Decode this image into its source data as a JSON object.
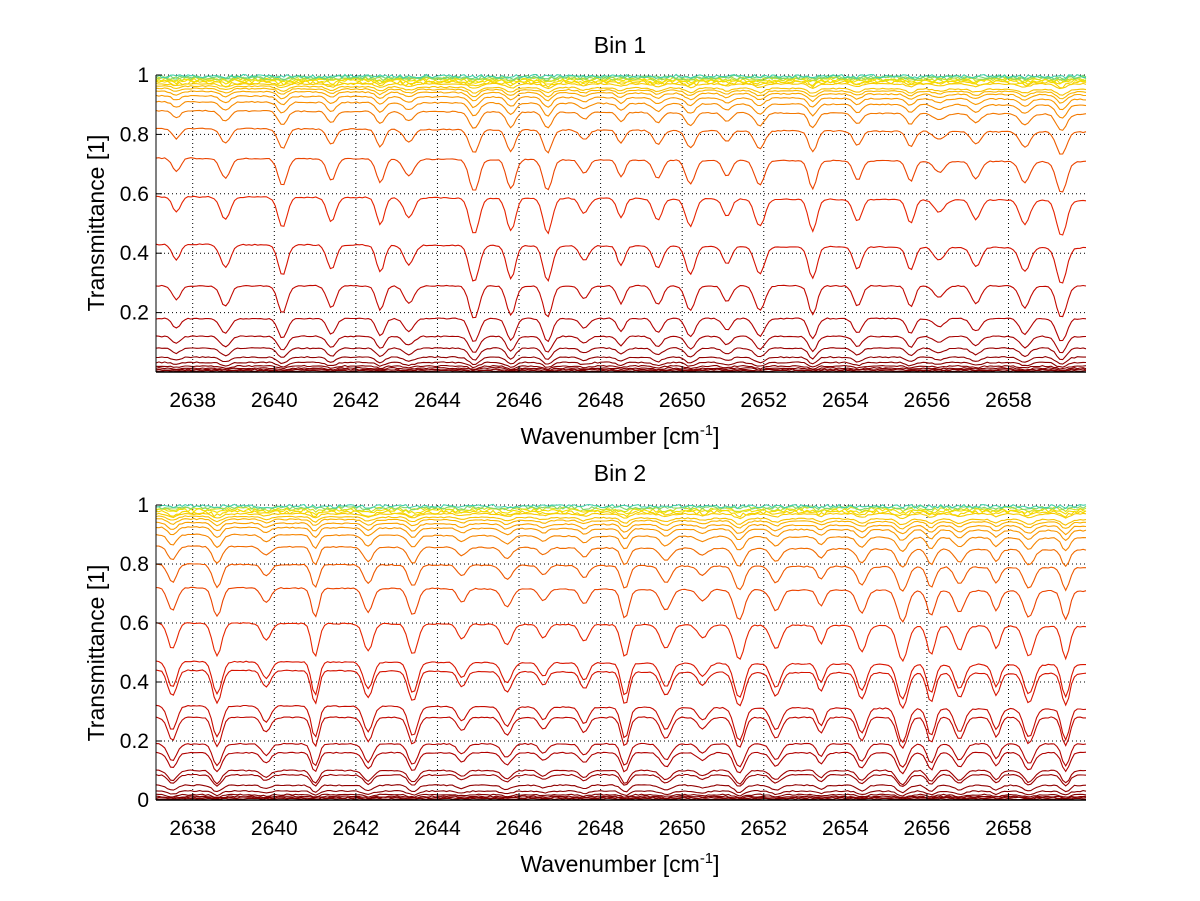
{
  "figure": {
    "background": "#ffffff",
    "grid_color": "#000000",
    "axis_color": "#000000"
  },
  "chart_data": [
    {
      "type": "line",
      "title": "Bin 1",
      "xlabel": "Wavenumber [cm",
      "xlabel_superscript": "-1",
      "xlabel_suffix": "]",
      "ylabel": "Transmittance [1]",
      "xlim": [
        2637.1,
        2659.9
      ],
      "ylim": [
        0,
        1
      ],
      "xticks": [
        2638,
        2640,
        2642,
        2644,
        2646,
        2648,
        2650,
        2652,
        2654,
        2656,
        2658
      ],
      "yticks": [
        0.2,
        0.4,
        0.6,
        0.8,
        1
      ],
      "ytick_labels": [
        "0.2",
        "0.4",
        "0.6",
        "0.8",
        "1"
      ],
      "grid": true,
      "line_count_approx": 50,
      "series_levels": [
        0.004,
        0.008,
        0.013,
        0.02,
        0.032,
        0.05,
        0.08,
        0.12,
        0.18,
        0.29,
        0.43,
        0.59,
        0.72,
        0.82,
        0.88,
        0.91,
        0.93,
        0.945,
        0.955,
        0.963,
        0.97,
        0.975,
        0.98,
        0.984,
        0.987,
        0.99,
        0.993,
        0.996
      ],
      "absorption_lines_cm1": [
        2637.6,
        2638.8,
        2640.2,
        2641.4,
        2642.6,
        2643.3,
        2644.9,
        2645.8,
        2646.7,
        2647.6,
        2648.5,
        2649.4,
        2650.2,
        2651.1,
        2651.9,
        2653.2,
        2654.3,
        2655.6,
        2656.3,
        2657.2,
        2658.4,
        2659.3
      ],
      "colormap": "dark-red → red → orange → yellow → cyan at 1"
    },
    {
      "type": "line",
      "title": "Bin 2",
      "xlabel": "Wavenumber [cm",
      "xlabel_superscript": "-1",
      "xlabel_suffix": "]",
      "ylabel": "Transmittance [1]",
      "xlim": [
        2637.1,
        2659.9
      ],
      "ylim": [
        0,
        1
      ],
      "xticks": [
        2638,
        2640,
        2642,
        2644,
        2646,
        2648,
        2650,
        2652,
        2654,
        2656,
        2658
      ],
      "yticks": [
        0,
        0.2,
        0.4,
        0.6,
        0.8,
        1
      ],
      "ytick_labels": [
        "0",
        "0.2",
        "0.4",
        "0.6",
        "0.8",
        "1"
      ],
      "grid": true,
      "line_count_approx": 50,
      "series_levels": [
        0.004,
        0.008,
        0.012,
        0.018,
        0.03,
        0.05,
        0.085,
        0.1,
        0.16,
        0.19,
        0.28,
        0.32,
        0.44,
        0.47,
        0.6,
        0.72,
        0.8,
        0.86,
        0.9,
        0.925,
        0.94,
        0.953,
        0.962,
        0.97,
        0.976,
        0.982,
        0.987,
        0.992,
        0.996
      ],
      "absorption_lines_cm1": [
        2637.5,
        2638.6,
        2639.8,
        2641.0,
        2642.3,
        2643.4,
        2644.6,
        2645.7,
        2646.6,
        2647.6,
        2648.6,
        2649.6,
        2650.5,
        2651.4,
        2652.3,
        2653.4,
        2654.4,
        2655.4,
        2656.1,
        2656.8,
        2657.7,
        2658.5,
        2659.4
      ],
      "colormap": "dark-red → red → orange → yellow → cyan at 1"
    }
  ]
}
